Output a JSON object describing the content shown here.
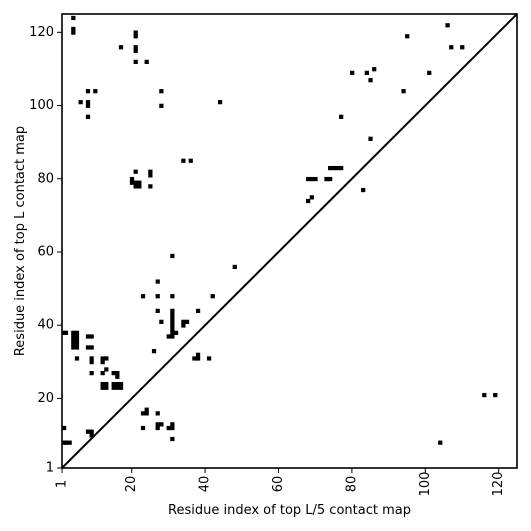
{
  "chart_data": {
    "type": "scatter",
    "title": "",
    "xlabel": "Residue index of top L/5 contact map",
    "ylabel": "Residue index of top L contact map",
    "xlim": [
      1,
      125
    ],
    "ylim": [
      1,
      125
    ],
    "xticks": [
      1,
      20,
      40,
      60,
      80,
      100,
      120
    ],
    "yticks": [
      1,
      20,
      40,
      60,
      80,
      100,
      120
    ],
    "diagonal": true,
    "grid": false,
    "series": [
      {
        "points": [
          [
            1,
            8
          ],
          [
            2,
            8
          ],
          [
            3,
            8
          ],
          [
            1,
            12
          ],
          [
            1,
            38
          ],
          [
            2,
            38
          ],
          [
            4,
            38
          ],
          [
            4,
            37
          ],
          [
            4,
            36
          ],
          [
            4,
            35
          ],
          [
            4,
            34
          ],
          [
            5,
            38
          ],
          [
            5,
            37
          ],
          [
            5,
            36
          ],
          [
            5,
            35
          ],
          [
            5,
            34
          ],
          [
            5,
            31
          ],
          [
            4,
            120
          ],
          [
            4,
            121
          ],
          [
            4,
            124
          ],
          [
            6,
            101
          ],
          [
            8,
            100
          ],
          [
            8,
            101
          ],
          [
            8,
            104
          ],
          [
            8,
            97
          ],
          [
            10,
            104
          ],
          [
            8,
            37
          ],
          [
            9,
            37
          ],
          [
            8,
            34
          ],
          [
            9,
            34
          ],
          [
            9,
            30
          ],
          [
            9,
            31
          ],
          [
            9,
            27
          ],
          [
            9,
            11
          ],
          [
            8,
            11
          ],
          [
            9,
            10
          ],
          [
            12,
            31
          ],
          [
            13,
            31
          ],
          [
            12,
            30
          ],
          [
            12,
            27
          ],
          [
            13,
            28
          ],
          [
            12,
            24
          ],
          [
            13,
            24
          ],
          [
            12,
            23
          ],
          [
            13,
            23
          ],
          [
            15,
            27
          ],
          [
            16,
            27
          ],
          [
            16,
            26
          ],
          [
            15,
            24
          ],
          [
            16,
            24
          ],
          [
            17,
            24
          ],
          [
            15,
            23
          ],
          [
            16,
            23
          ],
          [
            17,
            23
          ],
          [
            17,
            116
          ],
          [
            21,
            112
          ],
          [
            21,
            115
          ],
          [
            21,
            116
          ],
          [
            21,
            119
          ],
          [
            21,
            120
          ],
          [
            24,
            112
          ],
          [
            20,
            79
          ],
          [
            20,
            80
          ],
          [
            21,
            78
          ],
          [
            21,
            79
          ],
          [
            22,
            78
          ],
          [
            22,
            79
          ],
          [
            21,
            82
          ],
          [
            25,
            78
          ],
          [
            25,
            81
          ],
          [
            25,
            82
          ],
          [
            23,
            48
          ],
          [
            23,
            16
          ],
          [
            24,
            16
          ],
          [
            24,
            17
          ],
          [
            23,
            12
          ],
          [
            26,
            33
          ],
          [
            27,
            52
          ],
          [
            27,
            48
          ],
          [
            27,
            44
          ],
          [
            27,
            16
          ],
          [
            27,
            13
          ],
          [
            28,
            13
          ],
          [
            27,
            12
          ],
          [
            28,
            41
          ],
          [
            28,
            100
          ],
          [
            28,
            104
          ],
          [
            30,
            12
          ],
          [
            31,
            12
          ],
          [
            31,
            13
          ],
          [
            31,
            9
          ],
          [
            31,
            59
          ],
          [
            31,
            48
          ],
          [
            30,
            37
          ],
          [
            31,
            37
          ],
          [
            31,
            38
          ],
          [
            32,
            38
          ],
          [
            31,
            39
          ],
          [
            31,
            40
          ],
          [
            31,
            41
          ],
          [
            31,
            42
          ],
          [
            31,
            43
          ],
          [
            31,
            44
          ],
          [
            34,
            40
          ],
          [
            34,
            41
          ],
          [
            35,
            41
          ],
          [
            34,
            85
          ],
          [
            36,
            85
          ],
          [
            37,
            31
          ],
          [
            38,
            31
          ],
          [
            38,
            32
          ],
          [
            38,
            44
          ],
          [
            41,
            31
          ],
          [
            42,
            48
          ],
          [
            44,
            101
          ],
          [
            48,
            56
          ],
          [
            68,
            74
          ],
          [
            69,
            75
          ],
          [
            68,
            80
          ],
          [
            69,
            80
          ],
          [
            70,
            80
          ],
          [
            73,
            80
          ],
          [
            74,
            80
          ],
          [
            74,
            83
          ],
          [
            75,
            83
          ],
          [
            76,
            83
          ],
          [
            77,
            83
          ],
          [
            77,
            97
          ],
          [
            80,
            109
          ],
          [
            83,
            77
          ],
          [
            84,
            109
          ],
          [
            85,
            107
          ],
          [
            85,
            91
          ],
          [
            86,
            110
          ],
          [
            94,
            104
          ],
          [
            95,
            119
          ],
          [
            101,
            109
          ],
          [
            104,
            8
          ],
          [
            106,
            122
          ],
          [
            107,
            116
          ],
          [
            110,
            116
          ],
          [
            116,
            21
          ],
          [
            119,
            21
          ]
        ]
      }
    ]
  }
}
